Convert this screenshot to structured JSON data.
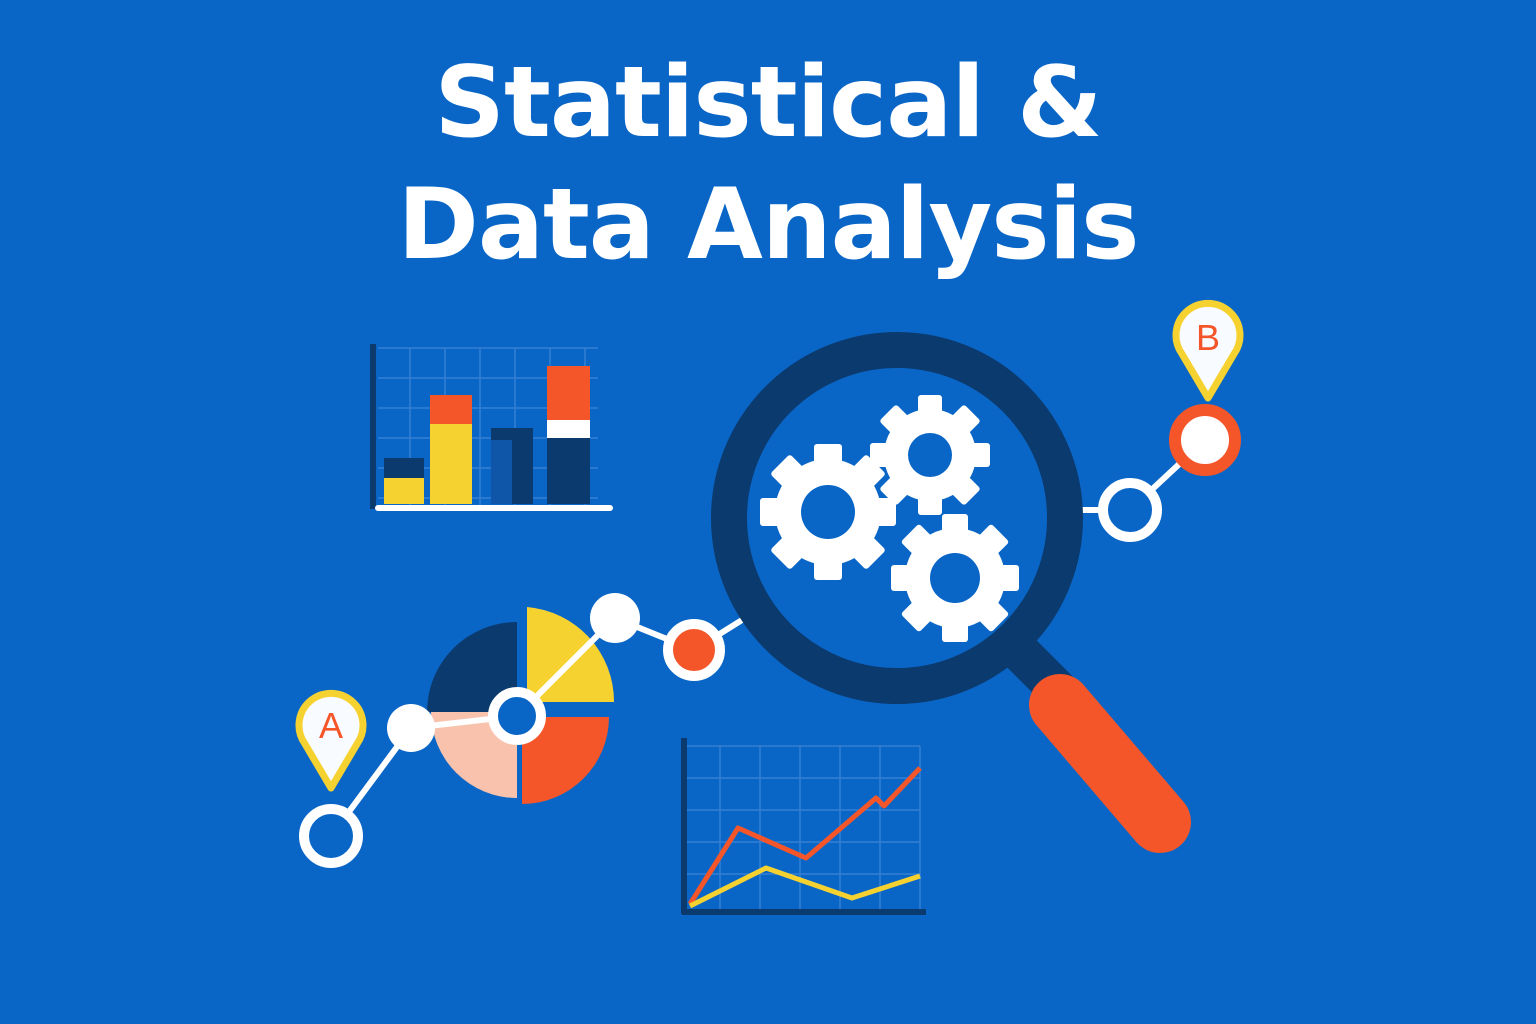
{
  "title": {
    "line1": "Statistical &",
    "line2": "Data Analysis"
  },
  "markers": {
    "start": "A",
    "end": "B"
  },
  "palette": {
    "background": "#0a66c6",
    "navy": "#0b3a6e",
    "orange": "#f4562a",
    "yellow": "#f6d231",
    "peach": "#f8c2ad",
    "white": "#ffffff"
  },
  "icons": [
    "bar-chart-icon",
    "pie-chart-icon",
    "line-chart-icon",
    "magnifying-glass-icon",
    "gear-icon",
    "map-pin-icon"
  ]
}
